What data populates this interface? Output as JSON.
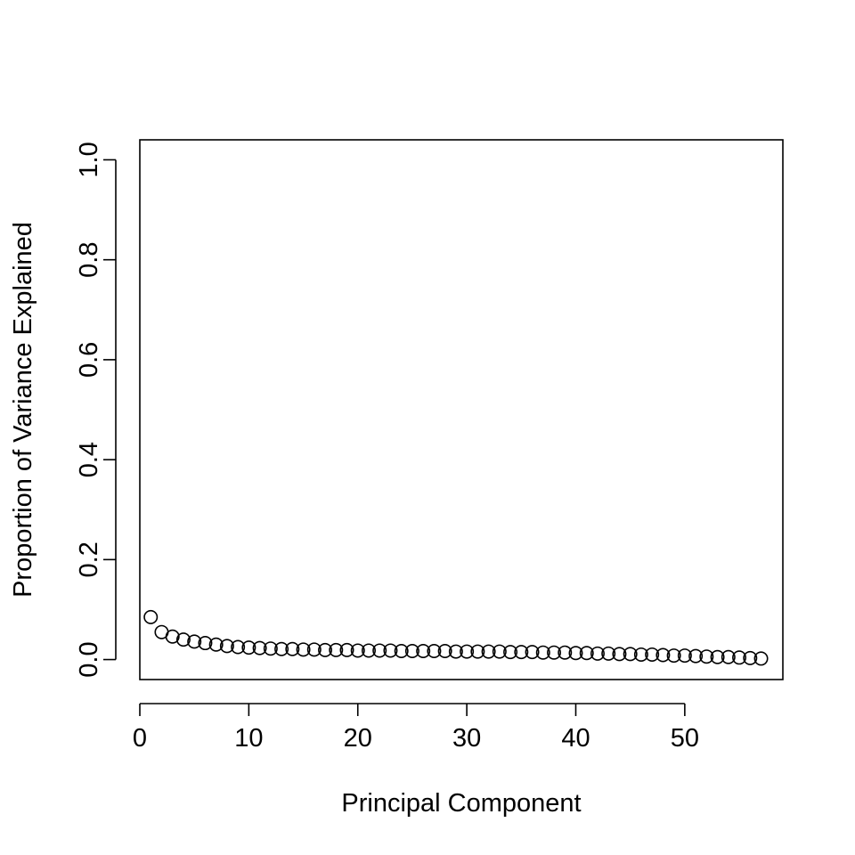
{
  "chart_data": {
    "type": "scatter",
    "title": "",
    "xlabel": "Principal Component",
    "ylabel": "Proportion of Variance Explained",
    "xlim": [
      0,
      59
    ],
    "ylim": [
      -0.04,
      1.04
    ],
    "xticks": [
      0,
      10,
      20,
      30,
      40,
      50
    ],
    "yticks": [
      0.0,
      0.2,
      0.4,
      0.6,
      0.8,
      1.0
    ],
    "xtick_labels": [
      "0",
      "10",
      "20",
      "30",
      "40",
      "50"
    ],
    "ytick_labels": [
      "0.0",
      "0.2",
      "0.4",
      "0.6",
      "0.8",
      "1.0"
    ],
    "grid": false,
    "legend": "none",
    "marker": "open-circle",
    "color": "#000000",
    "x": [
      1,
      2,
      3,
      4,
      5,
      6,
      7,
      8,
      9,
      10,
      11,
      12,
      13,
      14,
      15,
      16,
      17,
      18,
      19,
      20,
      21,
      22,
      23,
      24,
      25,
      26,
      27,
      28,
      29,
      30,
      31,
      32,
      33,
      34,
      35,
      36,
      37,
      38,
      39,
      40,
      41,
      42,
      43,
      44,
      45,
      46,
      47,
      48,
      49,
      50,
      51,
      52,
      53,
      54,
      55,
      56,
      57
    ],
    "y": [
      0.085,
      0.055,
      0.046,
      0.04,
      0.036,
      0.033,
      0.03,
      0.027,
      0.025,
      0.024,
      0.023,
      0.022,
      0.021,
      0.021,
      0.02,
      0.02,
      0.019,
      0.019,
      0.019,
      0.018,
      0.018,
      0.018,
      0.018,
      0.017,
      0.017,
      0.017,
      0.017,
      0.017,
      0.016,
      0.016,
      0.016,
      0.016,
      0.016,
      0.015,
      0.015,
      0.015,
      0.014,
      0.014,
      0.014,
      0.013,
      0.013,
      0.012,
      0.012,
      0.011,
      0.011,
      0.01,
      0.01,
      0.009,
      0.008,
      0.008,
      0.007,
      0.006,
      0.005,
      0.005,
      0.004,
      0.003,
      0.002
    ]
  }
}
